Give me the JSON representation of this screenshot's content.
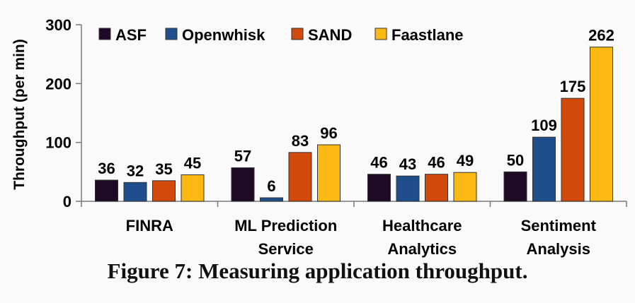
{
  "chart_data": {
    "type": "bar",
    "title": "",
    "ylabel": "Throughput (per min)",
    "xlabel": "",
    "ylim": [
      0,
      300
    ],
    "yticks": [
      0,
      100,
      200,
      300
    ],
    "grid": false,
    "legend_position": "top",
    "categories": [
      [
        "FINRA"
      ],
      [
        "ML Prediction",
        "Service"
      ],
      [
        "Healthcare",
        "Analytics"
      ],
      [
        "Sentiment",
        "Analysis"
      ]
    ],
    "series": [
      {
        "name": "ASF",
        "color": "#1e0a26",
        "values": [
          36,
          57,
          46,
          50
        ]
      },
      {
        "name": "Openwhisk",
        "color": "#1f4e8c",
        "values": [
          32,
          6,
          43,
          109
        ]
      },
      {
        "name": "SAND",
        "color": "#d24a0b",
        "values": [
          35,
          83,
          46,
          175
        ]
      },
      {
        "name": "Faastlane",
        "color": "#fdb913",
        "values": [
          45,
          96,
          49,
          262
        ]
      }
    ]
  },
  "caption": "Figure 7: Measuring application throughput."
}
